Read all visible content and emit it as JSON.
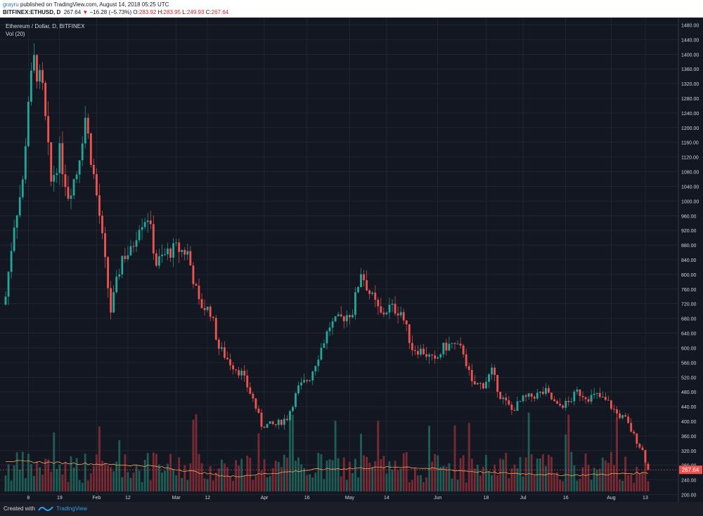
{
  "header": {
    "user": "grayru",
    "published": " published on TradingView.com, August 14, 2018 05:25 UTC",
    "symbol": "BITFINEX:ETHUSD, D",
    "last": "267.64",
    "change_arrow": "▼",
    "change": "−16.28 (−5.73%)",
    "o_label": "O:",
    "o_value": "283.92",
    "h_label": "H:",
    "h_value": "283.95",
    "l_label": "L:",
    "l_value": "249.93",
    "c_label": "C:",
    "c_value": "267.64"
  },
  "legend": {
    "title": "Ethereum / Dollar, D, BITFINEX",
    "volume_label": "Vol (20)"
  },
  "price_tag": "267.64",
  "footer": {
    "created_with": "Created with",
    "brand": "TradingView"
  },
  "colors": {
    "background": "#131722",
    "up": "#26a69a",
    "down": "#ef5350",
    "volume_up": "#1f5e57",
    "volume_down": "#7a2a33",
    "ma": "#f7a35c",
    "grid": "#2a2e39",
    "axis_text": "#d1d4dc"
  },
  "chart_data": {
    "type": "candlestick",
    "title": "Ethereum / Dollar, D, BITFINEX",
    "ylim": [
      180,
      1500
    ],
    "y_ticks": [
      200,
      240,
      280,
      320,
      360,
      400,
      440,
      480,
      520,
      560,
      600,
      640,
      680,
      720,
      760,
      800,
      840,
      880,
      920,
      960,
      1000,
      1040,
      1080,
      1120,
      1160,
      1200,
      1240,
      1280,
      1320,
      1360,
      1400,
      1440,
      1480
    ],
    "x_ticks": [
      "8",
      "19",
      "Feb",
      "12",
      "Mar",
      "12",
      "Apr",
      "16",
      "May",
      "14",
      "Jun",
      "18",
      "Jul",
      "16",
      "Aug",
      "13"
    ],
    "date_range": [
      "2017-12-31",
      "2018-08-14"
    ],
    "ohlc_keypoints": [
      [
        "2017-12-31",
        740
      ],
      [
        "2018-01-03",
        940
      ],
      [
        "2018-01-06",
        1050
      ],
      [
        "2018-01-08",
        1280
      ],
      [
        "2018-01-10",
        1380
      ],
      [
        "2018-01-13",
        1300
      ],
      [
        "2018-01-16",
        1050
      ],
      [
        "2018-01-19",
        1130
      ],
      [
        "2018-01-22",
        1020
      ],
      [
        "2018-01-25",
        1080
      ],
      [
        "2018-01-28",
        1230
      ],
      [
        "2018-02-02",
        960
      ],
      [
        "2018-02-06",
        700
      ],
      [
        "2018-02-10",
        850
      ],
      [
        "2018-02-13",
        860
      ],
      [
        "2018-02-16",
        940
      ],
      [
        "2018-02-19",
        960
      ],
      [
        "2018-02-22",
        830
      ],
      [
        "2018-02-26",
        860
      ],
      [
        "2018-03-01",
        870
      ],
      [
        "2018-03-05",
        860
      ],
      [
        "2018-03-09",
        720
      ],
      [
        "2018-03-13",
        700
      ],
      [
        "2018-03-16",
        600
      ],
      [
        "2018-03-20",
        560
      ],
      [
        "2018-03-24",
        530
      ],
      [
        "2018-03-28",
        460
      ],
      [
        "2018-03-31",
        390
      ],
      [
        "2018-04-05",
        390
      ],
      [
        "2018-04-09",
        410
      ],
      [
        "2018-04-13",
        490
      ],
      [
        "2018-04-17",
        520
      ],
      [
        "2018-04-21",
        600
      ],
      [
        "2018-04-24",
        660
      ],
      [
        "2018-04-28",
        680
      ],
      [
        "2018-05-02",
        700
      ],
      [
        "2018-05-05",
        810
      ],
      [
        "2018-05-08",
        750
      ],
      [
        "2018-05-12",
        690
      ],
      [
        "2018-05-15",
        710
      ],
      [
        "2018-05-19",
        700
      ],
      [
        "2018-05-23",
        600
      ],
      [
        "2018-05-27",
        590
      ],
      [
        "2018-05-31",
        560
      ],
      [
        "2018-06-03",
        600
      ],
      [
        "2018-06-06",
        610
      ],
      [
        "2018-06-10",
        590
      ],
      [
        "2018-06-13",
        500
      ],
      [
        "2018-06-17",
        500
      ],
      [
        "2018-06-20",
        535
      ],
      [
        "2018-06-23",
        470
      ],
      [
        "2018-06-27",
        430
      ],
      [
        "2018-07-01",
        460
      ],
      [
        "2018-07-05",
        470
      ],
      [
        "2018-07-09",
        480
      ],
      [
        "2018-07-13",
        440
      ],
      [
        "2018-07-17",
        450
      ],
      [
        "2018-07-20",
        480
      ],
      [
        "2018-07-24",
        465
      ],
      [
        "2018-07-27",
        470
      ],
      [
        "2018-07-31",
        450
      ],
      [
        "2018-08-03",
        420
      ],
      [
        "2018-08-06",
        405
      ],
      [
        "2018-08-09",
        360
      ],
      [
        "2018-08-12",
        320
      ],
      [
        "2018-08-14",
        267.64
      ]
    ],
    "volume_ma_keypoints": [
      [
        "2017-12-31",
        0.62
      ],
      [
        "2018-01-20",
        0.58
      ],
      [
        "2018-02-20",
        0.52
      ],
      [
        "2018-03-20",
        0.3
      ],
      [
        "2018-04-20",
        0.45
      ],
      [
        "2018-05-20",
        0.5
      ],
      [
        "2018-06-20",
        0.38
      ],
      [
        "2018-07-20",
        0.33
      ],
      [
        "2018-08-14",
        0.38
      ]
    ]
  }
}
